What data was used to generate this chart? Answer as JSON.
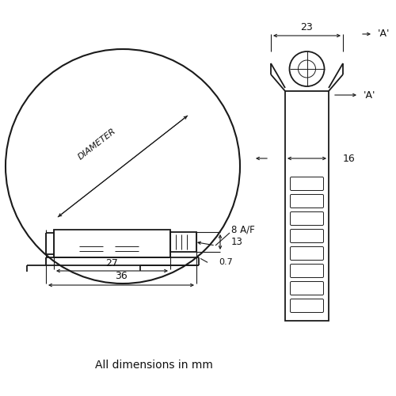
{
  "bg_color": "#ffffff",
  "line_color": "#1a1a1a",
  "text_color": "#111111",
  "footnote": "All dimensions in mm",
  "dim_36": "36",
  "dim_27": "27",
  "dim_8af": "8 A/F",
  "dim_13": "13",
  "dim_diameter": "DIAMETER",
  "dim_07": "0.7",
  "dim_23": "23",
  "dim_16": "16",
  "dim_A": "'A'"
}
